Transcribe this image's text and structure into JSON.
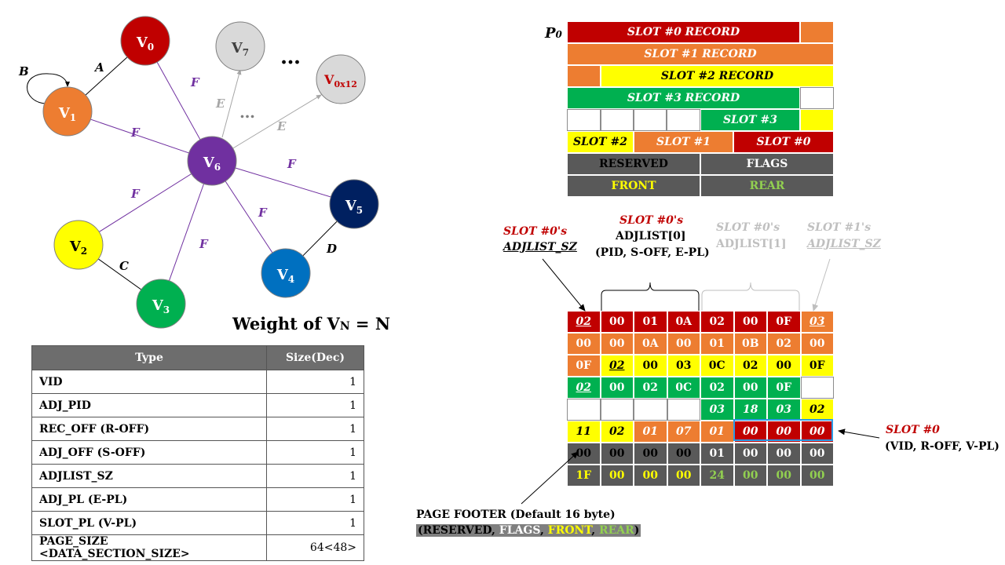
{
  "colors": {
    "red": "#c00000",
    "orange": "#ed7d31",
    "yellow": "#ffff00",
    "green": "#00b050",
    "dark": "#595959",
    "purple": "#7030a0",
    "navy": "#002060",
    "blue": "#0070c0",
    "gray_node": "#d9d9d9",
    "edge_f": "#7030a0",
    "edge_e": "#a6a6a6"
  },
  "graph": {
    "nodes": [
      {
        "id": "v0",
        "base": "V",
        "sub": "0",
        "fill": "#c00000",
        "text": "#ffffff"
      },
      {
        "id": "v1",
        "base": "V",
        "sub": "1",
        "fill": "#ed7d31",
        "text": "#ffffff"
      },
      {
        "id": "v2",
        "base": "V",
        "sub": "2",
        "fill": "#ffff00",
        "text": "#000000"
      },
      {
        "id": "v3",
        "base": "V",
        "sub": "3",
        "fill": "#00b050",
        "text": "#ffffff"
      },
      {
        "id": "v4",
        "base": "V",
        "sub": "4",
        "fill": "#0070c0",
        "text": "#ffffff"
      },
      {
        "id": "v5",
        "base": "V",
        "sub": "5",
        "fill": "#002060",
        "text": "#ffffff"
      },
      {
        "id": "v6",
        "base": "V",
        "sub": "6",
        "fill": "#7030a0",
        "text": "#ffffff"
      },
      {
        "id": "v7",
        "base": "V",
        "sub": "7",
        "fill": "#d9d9d9",
        "text": "#404040"
      },
      {
        "id": "v0x12",
        "base": "V",
        "sub": "0x12",
        "fill": "#d9d9d9",
        "text": "#c00000"
      }
    ],
    "edge_labels": {
      "A": "A",
      "B": "B",
      "C": "C",
      "D": "D",
      "F": "F",
      "E": "E"
    },
    "ellipsis_top": "…",
    "ellipsis_mid": "…",
    "weight_text": "Weight of V",
    "weight_sub": "N",
    "weight_eq": " = N"
  },
  "type_table": {
    "header": [
      "Type",
      "Size(Dec)"
    ],
    "rows": [
      [
        "VID",
        "1"
      ],
      [
        "ADJ_PID",
        "1"
      ],
      [
        "REC_OFF (R-OFF)",
        "1"
      ],
      [
        "ADJ_OFF (S-OFF)",
        "1"
      ],
      [
        "ADJLIST_SZ",
        "1"
      ],
      [
        "ADJ_PL (E-PL)",
        "1"
      ],
      [
        "SLOT_PL (V-PL)",
        "1"
      ],
      [
        "PAGE_SIZE <DATA_SECTION_SIZE>",
        "64<48>"
      ]
    ]
  },
  "page_label": "P",
  "page_label_sub": "0",
  "page_layout": {
    "slot0_record": "SLOT #0 RECORD",
    "slot1_record": "SLOT #1 RECORD",
    "slot2_record": "SLOT #2 RECORD",
    "slot3_record": "SLOT #3 RECORD",
    "slot3": "SLOT #3",
    "slot2": "SLOT #2",
    "slot1": "SLOT #1",
    "slot0": "SLOT #0",
    "reserved": "RESERVED",
    "flags": "FLAGS",
    "front": "FRONT",
    "rear": "REAR"
  },
  "hex_grid": {
    "rows": [
      [
        {
          "v": "02",
          "c": "red",
          "s": "iu"
        },
        {
          "v": "00",
          "c": "red"
        },
        {
          "v": "01",
          "c": "red"
        },
        {
          "v": "0A",
          "c": "red"
        },
        {
          "v": "02",
          "c": "red"
        },
        {
          "v": "00",
          "c": "red"
        },
        {
          "v": "0F",
          "c": "red"
        },
        {
          "v": "03",
          "c": "org",
          "s": "iu"
        }
      ],
      [
        {
          "v": "00",
          "c": "org"
        },
        {
          "v": "00",
          "c": "org"
        },
        {
          "v": "0A",
          "c": "org"
        },
        {
          "v": "00",
          "c": "org"
        },
        {
          "v": "01",
          "c": "org"
        },
        {
          "v": "0B",
          "c": "org"
        },
        {
          "v": "02",
          "c": "org"
        },
        {
          "v": "00",
          "c": "org"
        }
      ],
      [
        {
          "v": "0F",
          "c": "org"
        },
        {
          "v": "02",
          "c": "yel",
          "s": "iu"
        },
        {
          "v": "00",
          "c": "yel"
        },
        {
          "v": "03",
          "c": "yel"
        },
        {
          "v": "0C",
          "c": "yel"
        },
        {
          "v": "02",
          "c": "yel"
        },
        {
          "v": "00",
          "c": "yel"
        },
        {
          "v": "0F",
          "c": "yel"
        }
      ],
      [
        {
          "v": "02",
          "c": "grn",
          "s": "iu"
        },
        {
          "v": "00",
          "c": "grn"
        },
        {
          "v": "02",
          "c": "grn"
        },
        {
          "v": "0C",
          "c": "grn"
        },
        {
          "v": "02",
          "c": "grn"
        },
        {
          "v": "00",
          "c": "grn"
        },
        {
          "v": "0F",
          "c": "grn"
        },
        {
          "v": "",
          "c": "wht"
        }
      ],
      [
        {
          "v": "",
          "c": "wht"
        },
        {
          "v": "",
          "c": "wht"
        },
        {
          "v": "",
          "c": "wht"
        },
        {
          "v": "",
          "c": "wht"
        },
        {
          "v": "03",
          "c": "grn",
          "s": "i"
        },
        {
          "v": "18",
          "c": "grn",
          "s": "i"
        },
        {
          "v": "03",
          "c": "grn",
          "s": "i"
        },
        {
          "v": "02",
          "c": "yel",
          "s": "i"
        }
      ],
      [
        {
          "v": "11",
          "c": "yel",
          "s": "i"
        },
        {
          "v": "02",
          "c": "yel",
          "s": "i"
        },
        {
          "v": "01",
          "c": "org",
          "s": "i"
        },
        {
          "v": "07",
          "c": "org",
          "s": "i"
        },
        {
          "v": "01",
          "c": "org",
          "s": "i"
        },
        {
          "v": "00",
          "c": "red",
          "s": "i"
        },
        {
          "v": "00",
          "c": "red",
          "s": "i"
        },
        {
          "v": "00",
          "c": "red",
          "s": "i"
        }
      ],
      [
        {
          "v": "00",
          "c": "dgr",
          "t": "#000000"
        },
        {
          "v": "00",
          "c": "dgr",
          "t": "#000000"
        },
        {
          "v": "00",
          "c": "dgr",
          "t": "#000000"
        },
        {
          "v": "00",
          "c": "dgr",
          "t": "#000000"
        },
        {
          "v": "01",
          "c": "dgr",
          "t": "#ffffff"
        },
        {
          "v": "00",
          "c": "dgr",
          "t": "#ffffff"
        },
        {
          "v": "00",
          "c": "dgr",
          "t": "#ffffff"
        },
        {
          "v": "00",
          "c": "dgr",
          "t": "#ffffff"
        }
      ],
      [
        {
          "v": "1F",
          "c": "dgr",
          "t": "#ffff00"
        },
        {
          "v": "00",
          "c": "dgr",
          "t": "#ffff00"
        },
        {
          "v": "00",
          "c": "dgr",
          "t": "#ffff00"
        },
        {
          "v": "00",
          "c": "dgr",
          "t": "#ffff00"
        },
        {
          "v": "24",
          "c": "dgr",
          "t": "#92d050"
        },
        {
          "v": "00",
          "c": "dgr",
          "t": "#92d050"
        },
        {
          "v": "00",
          "c": "dgr",
          "t": "#92d050"
        },
        {
          "v": "00",
          "c": "dgr",
          "t": "#92d050"
        }
      ]
    ]
  },
  "annotations": {
    "slot0_sz_line1": "SLOT #0's",
    "slot0_sz_line2": "ADJLIST_SZ",
    "slot0_adj0_line1": "SLOT #0's",
    "slot0_adj0_line2": "ADJLIST[0]",
    "slot0_adj0_line3": "(PID, S-OFF, E-PL)",
    "slot0_adj1_line1": "SLOT #0's",
    "slot0_adj1_line2": "ADJLIST[1]",
    "slot1_sz_line1": "SLOT #1's",
    "slot1_sz_line2": "ADJLIST_SZ",
    "slot0_label": "SLOT #0",
    "slot0_desc": "(VID, R-OFF, V-PL)",
    "footer_line1": "PAGE FOOTER (Default 16 byte)",
    "footer_open": "(",
    "footer_reserved": "RESERVED",
    "footer_comma1": ", ",
    "footer_flags": "FLAGS",
    "footer_comma2": ", ",
    "footer_front": "FRONT",
    "footer_comma3": ", ",
    "footer_rear": "REAR",
    "footer_close": ")"
  }
}
